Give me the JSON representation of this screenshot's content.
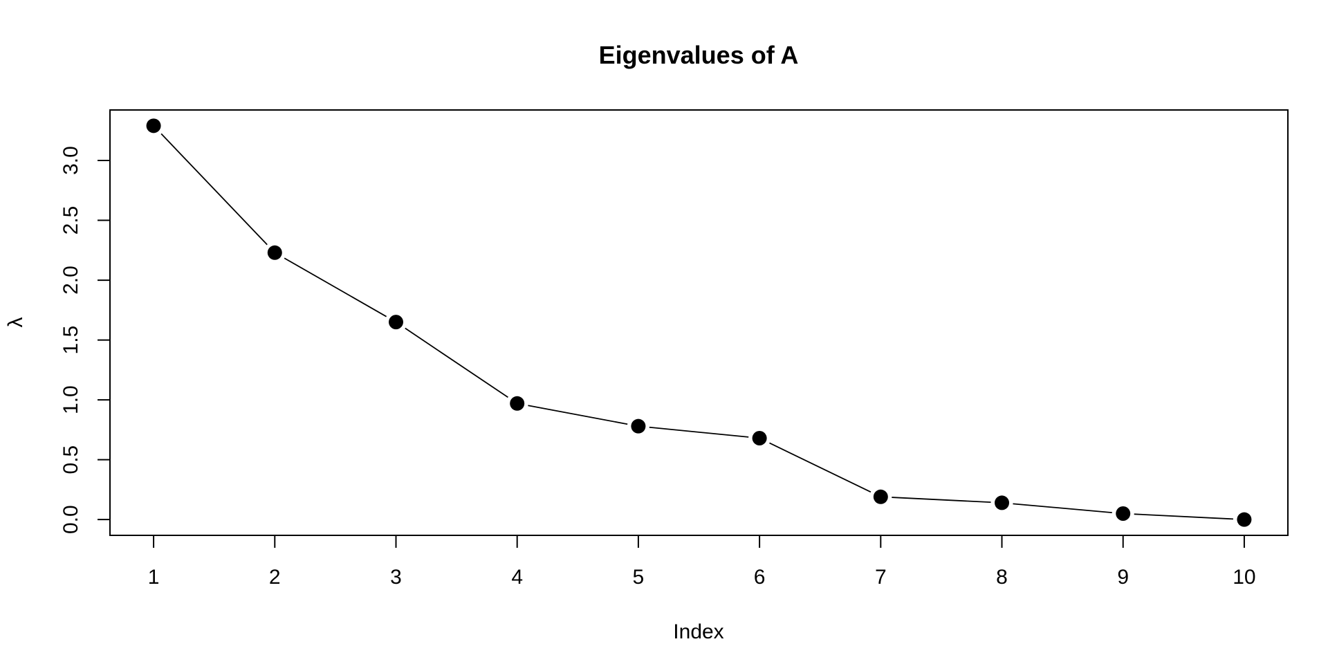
{
  "chart_data": {
    "type": "line",
    "title": "Eigenvalues of A",
    "xlabel": "Index",
    "ylabel": "λ",
    "x": [
      1,
      2,
      3,
      4,
      5,
      6,
      7,
      8,
      9,
      10
    ],
    "series": [
      {
        "values": [
          3.29,
          2.23,
          1.65,
          0.97,
          0.78,
          0.68,
          0.19,
          0.14,
          0.05,
          0.0
        ]
      }
    ],
    "x_ticks": [
      "1",
      "2",
      "3",
      "4",
      "5",
      "6",
      "7",
      "8",
      "9",
      "10"
    ],
    "y_ticks": [
      "0.0",
      "0.5",
      "1.0",
      "1.5",
      "2.0",
      "2.5",
      "3.0"
    ],
    "xlim": [
      0.64,
      10.36
    ],
    "ylim": [
      -0.132,
      3.422
    ],
    "grid": false,
    "marker": "filled-circle",
    "line_color": "#000000",
    "point_color": "#000000"
  }
}
